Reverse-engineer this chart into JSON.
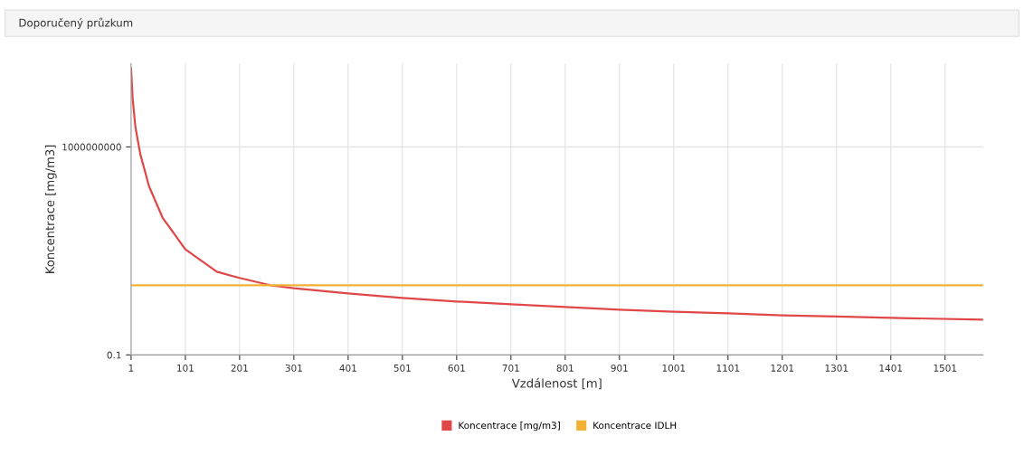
{
  "chart_data": {
    "type": "line",
    "title": "Doporučený průzkum",
    "xlabel": "Vzdálenost [m]",
    "ylabel": "Koncentrace [mg/m3]",
    "log": "y",
    "grid": true,
    "legend": "bottom",
    "marker": "none",
    "line_style": "solid",
    "xlim": [
      1,
      1571
    ],
    "xticks": [
      1,
      101,
      201,
      301,
      401,
      501,
      601,
      701,
      801,
      901,
      1001,
      1101,
      1201,
      1301,
      1401,
      1501
    ],
    "ylim": [
      0.1,
      10000000000000.0
    ],
    "yticks": [
      0.1,
      1000000000
    ],
    "series": [
      {
        "name": "Koncentrace [mg/m3]",
        "color": "#e04848",
        "x": [
          1,
          4,
          9,
          18,
          34,
          59,
          101,
          159,
          201,
          259,
          301,
          401,
          501,
          601,
          701,
          801,
          901,
          1001,
          1101,
          1201,
          1301,
          1401,
          1571
        ],
        "values": [
          6000000000000.0,
          200000000000.0,
          9000000000.0,
          450000000.0,
          13000000.0,
          400000.0,
          12000,
          1000,
          500,
          220,
          160,
          90,
          55,
          37,
          27,
          20,
          15,
          12,
          10,
          8,
          7,
          6,
          5
        ]
      },
      {
        "name": "Koncentrace IDLH",
        "color": "#f2b134",
        "x": [
          1,
          1571
        ],
        "values": [
          220,
          220
        ]
      }
    ]
  }
}
